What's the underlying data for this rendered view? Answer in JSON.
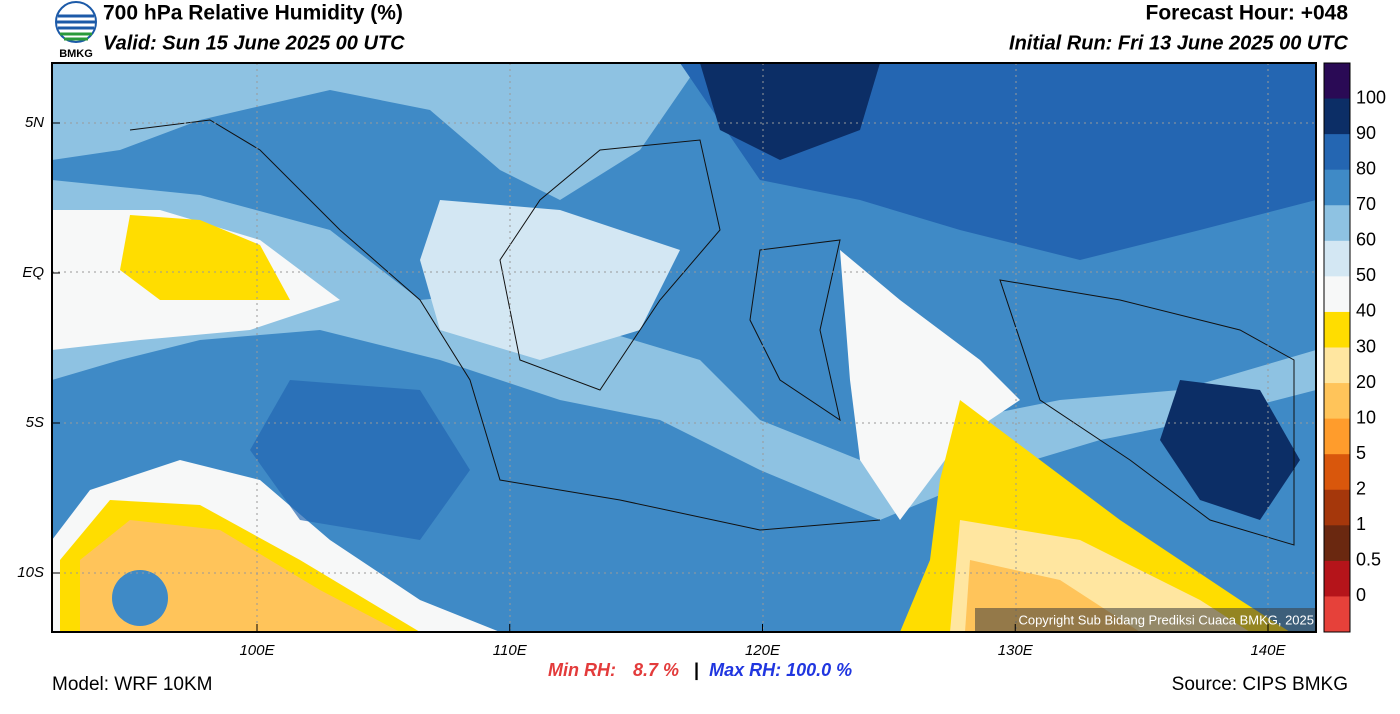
{
  "header": {
    "logo_text": "BMKG",
    "title": "700 hPa Relative Humidity (%)",
    "valid": "Valid: Sun 15 June 2025 00 UTC",
    "forecast_hour": "Forecast Hour: +048",
    "initial_run": "Initial Run: Fri 13 June 2025 00 UTC"
  },
  "map": {
    "lat_labels": [
      "5N",
      "EQ",
      "5S",
      "10S"
    ],
    "lon_labels": [
      "100E",
      "110E",
      "120E",
      "130E",
      "140E"
    ],
    "copyright": "Copyright Sub Bidang Prediksi Cuaca BMKG, 2025"
  },
  "legend": {
    "labels": [
      "100",
      "90",
      "80",
      "70",
      "60",
      "50",
      "40",
      "30",
      "20",
      "10",
      "5",
      "2",
      "1",
      "0.5",
      "0"
    ],
    "colors": [
      "#2a0a55",
      "#0c2e66",
      "#2466b2",
      "#3f8ac6",
      "#8ec2e2",
      "#d3e7f3",
      "#f7f8f8",
      "#ffdd00",
      "#ffe6a0",
      "#ffc45a",
      "#ff9c2c",
      "#d9570c",
      "#a5370b",
      "#6a2810",
      "#b5141a",
      "#e6413a"
    ]
  },
  "stats": {
    "min_label": "Min RH:",
    "min_value": "8.7 %",
    "separator": "|",
    "max_label": "Max RH: 100.0 %"
  },
  "footer": {
    "model": "Model: WRF 10KM",
    "source": "Source: CIPS BMKG"
  }
}
